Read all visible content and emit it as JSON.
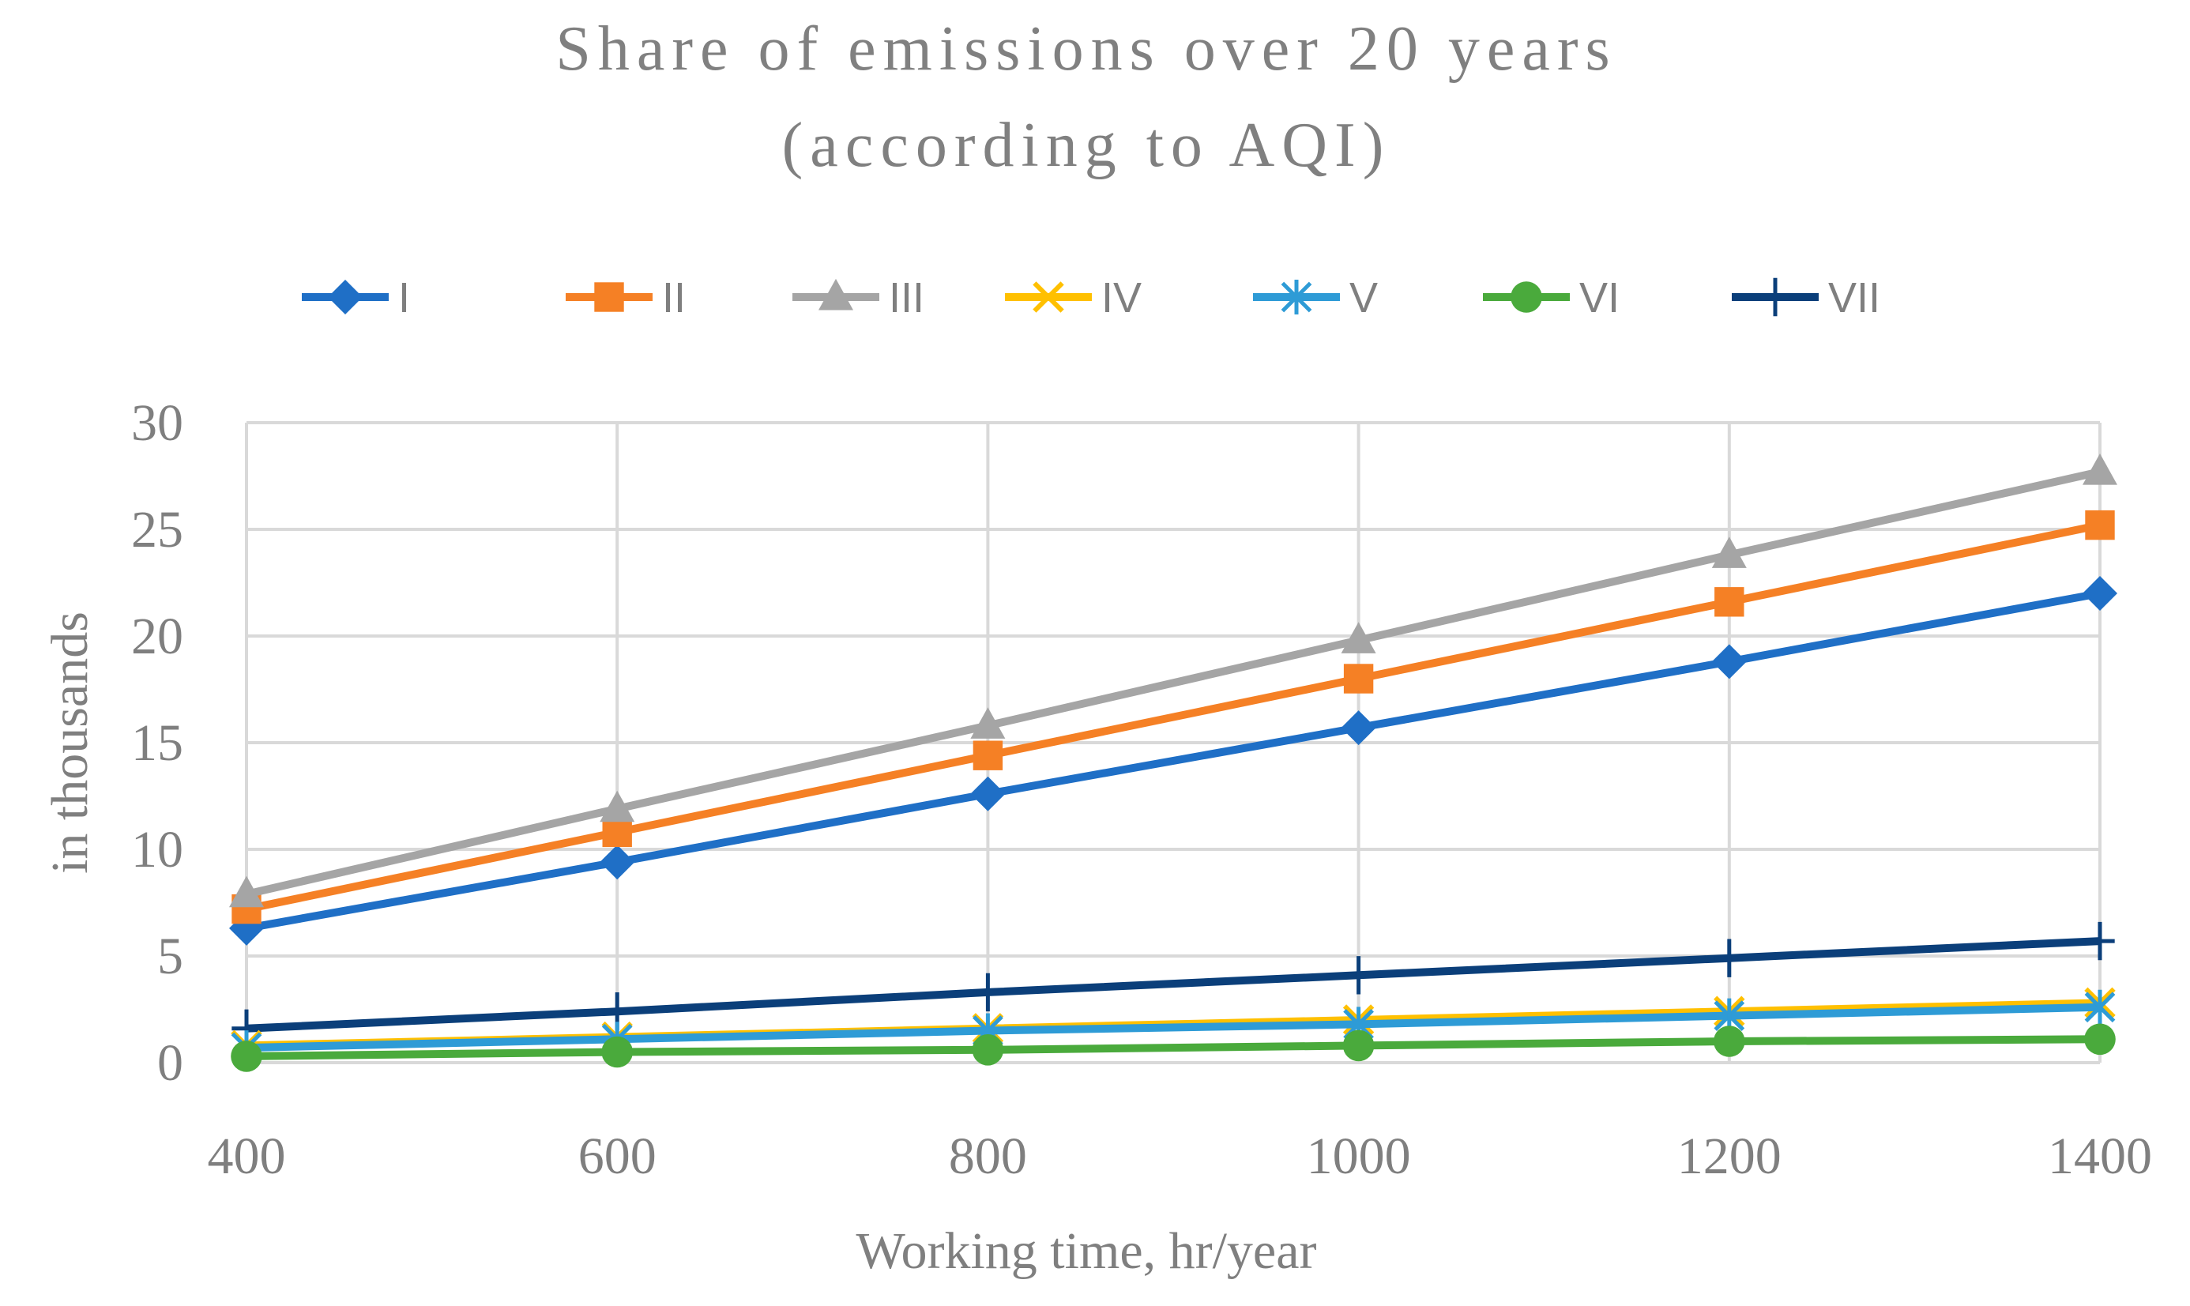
{
  "chart_data": {
    "type": "line",
    "title_lines": [
      "Share of emissions over 20 years",
      "(according to AQI)"
    ],
    "xlabel": "Working time, hr/year",
    "ylabel": "in thousands",
    "x": [
      400,
      600,
      800,
      1000,
      1200,
      1400
    ],
    "x_ticks": [
      "400",
      "600",
      "800",
      "1000",
      "1200",
      "1400"
    ],
    "y_ticks": [
      "0",
      "5",
      "10",
      "15",
      "20",
      "25",
      "30"
    ],
    "ylim": [
      0,
      30
    ],
    "grid": true,
    "legend_position": "top",
    "series": [
      {
        "name": "I",
        "color": "#1f6fc6",
        "marker": "diamond",
        "values": [
          6.3,
          9.4,
          12.6,
          15.7,
          18.8,
          22.0
        ]
      },
      {
        "name": "II",
        "color": "#f58025",
        "marker": "square",
        "values": [
          7.2,
          10.8,
          14.4,
          18.0,
          21.6,
          25.2
        ]
      },
      {
        "name": "III",
        "color": "#a5a5a5",
        "marker": "triangle",
        "values": [
          7.9,
          11.9,
          15.8,
          19.8,
          23.8,
          27.7
        ]
      },
      {
        "name": "IV",
        "color": "#ffc000",
        "marker": "x",
        "values": [
          0.8,
          1.2,
          1.6,
          2.0,
          2.4,
          2.8
        ]
      },
      {
        "name": "V",
        "color": "#2e9bd6",
        "marker": "asterisk",
        "values": [
          0.7,
          1.1,
          1.5,
          1.8,
          2.2,
          2.6
        ]
      },
      {
        "name": "VI",
        "color": "#4aaa3c",
        "marker": "circle",
        "values": [
          0.3,
          0.5,
          0.6,
          0.8,
          1.0,
          1.1
        ]
      },
      {
        "name": "VII",
        "color": "#0b3f7a",
        "marker": "plus",
        "values": [
          1.6,
          2.4,
          3.3,
          4.1,
          4.9,
          5.7
        ]
      }
    ]
  }
}
